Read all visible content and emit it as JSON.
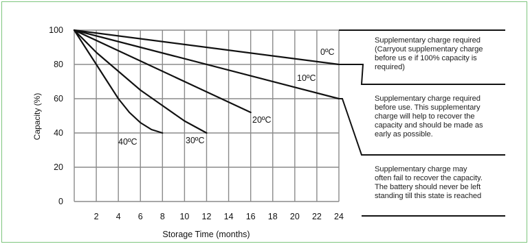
{
  "chart_data": {
    "type": "line",
    "xlabel": "Storage Time (months)",
    "ylabel": "Capacity (%)",
    "x_ticks": [
      2,
      4,
      6,
      8,
      10,
      12,
      14,
      16,
      18,
      20,
      22,
      24
    ],
    "y_ticks": [
      0,
      20,
      40,
      60,
      80,
      100
    ],
    "xlim": [
      0,
      24
    ],
    "ylim": [
      0,
      100
    ],
    "grid": true,
    "series": [
      {
        "name": "0ºC",
        "x": [
          0,
          24
        ],
        "y": [
          100,
          80
        ]
      },
      {
        "name": "10ºC",
        "x": [
          0,
          24
        ],
        "y": [
          100,
          60
        ]
      },
      {
        "name": "20ºC",
        "x": [
          0,
          16
        ],
        "y": [
          100,
          52
        ]
      },
      {
        "name": "30ºC",
        "x": [
          0,
          2,
          4,
          6,
          8,
          10,
          12
        ],
        "y": [
          100,
          87,
          76,
          65,
          56,
          47,
          40
        ]
      },
      {
        "name": "40ºC",
        "x": [
          0,
          1,
          2,
          3,
          4,
          5,
          6,
          7,
          8
        ],
        "y": [
          100,
          90,
          80,
          70,
          60,
          52,
          46,
          42,
          40
        ]
      }
    ],
    "annotations": [
      {
        "lines": [
          "Supplementary charge required",
          "(Carryout supplementary charge",
          "before us e if 100%  capacity is",
          "required)"
        ]
      },
      {
        "lines": [
          "Supplementary charge required",
          "before use. This supplementary",
          "charge will help to recover the",
          "capacity and should be made as",
          "early as possible."
        ]
      },
      {
        "lines": [
          "Supplementary charge may",
          "often fail to recover the capacity.",
          "The battery should never be left",
          "standing till this state is reached"
        ]
      }
    ]
  },
  "colors": {
    "line": "#111111",
    "grid": "#8a8a8a",
    "border": "#7cc47c"
  }
}
